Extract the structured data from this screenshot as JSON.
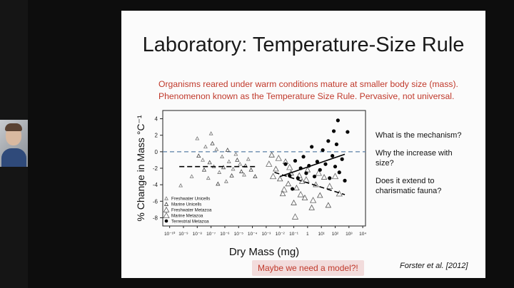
{
  "slide": {
    "title": "Laboratory: Temperature-Size Rule",
    "subtitle_line1": "Organisms reared under warm conditions mature at smaller body size (mass).",
    "subtitle_line2": "Phenomenon known as the Temperature Size Rule.  Pervasive, not universal.",
    "questions": [
      "What is the mechanism?",
      "Why the increase with",
      "size?",
      "Does it extend to",
      "charismatic fauna?"
    ],
    "model_button": "Maybe we need a model?!",
    "citation": "Forster et al. [2012]"
  },
  "chart_data": {
    "type": "scatter",
    "xlabel": "Dry Mass (mg)",
    "ylabel": "% Change in Mass °C⁻¹",
    "x_scale": "log10",
    "x_tick_exponents": [
      -10,
      -9,
      -8,
      -7,
      -6,
      -5,
      -4,
      -3,
      -2,
      -1,
      0,
      1,
      2,
      3,
      4
    ],
    "x_tick_labels": [
      "10⁻¹⁰",
      "10⁻⁹",
      "10⁻⁸",
      "10⁻⁷",
      "10⁻⁶",
      "10⁻⁵",
      "10⁻⁴",
      "10⁻³",
      "10⁻²",
      "10⁻¹",
      "1",
      "10¹",
      "10²",
      "10³",
      "10⁴"
    ],
    "ylim": [
      -9,
      5
    ],
    "y_ticks": [
      -8,
      -6,
      -4,
      -2,
      0,
      2,
      4
    ],
    "zero_line": "dashed",
    "legend": [
      "Freshwater Unicells",
      "Marine Unicells",
      "Freshwater Metazoa",
      "Marine Metazoa",
      "Terrestrial Metazoa"
    ],
    "series": [
      {
        "name": "Freshwater Unicells",
        "marker": "small-triangle-open",
        "points": [
          [
            -9.2,
            -4.1
          ],
          [
            -8.4,
            -3.0
          ],
          [
            -8.0,
            1.6
          ],
          [
            -7.6,
            -1.0
          ],
          [
            -7.4,
            0.6
          ],
          [
            -7.2,
            -3.2
          ],
          [
            -7.0,
            2.2
          ],
          [
            -6.8,
            -1.8
          ],
          [
            -6.6,
            0.3
          ],
          [
            -6.4,
            -2.5
          ],
          [
            -6.2,
            -0.6
          ],
          [
            -5.9,
            -3.6
          ],
          [
            -5.7,
            -1.2
          ],
          [
            -5.4,
            -2.1
          ],
          [
            -5.2,
            -0.3
          ],
          [
            -4.9,
            -1.5
          ],
          [
            -4.6,
            -2.8
          ],
          [
            -4.3,
            -0.9
          ]
        ]
      },
      {
        "name": "Marine Unicells",
        "marker": "small-triangle-open-dark",
        "points": [
          [
            -7.9,
            -0.5
          ],
          [
            -7.5,
            -2.2
          ],
          [
            -7.1,
            -1.3
          ],
          [
            -6.9,
            1.0
          ],
          [
            -6.5,
            -3.9
          ],
          [
            -6.1,
            -1.9
          ],
          [
            -5.8,
            0.2
          ],
          [
            -5.5,
            -2.9
          ],
          [
            -5.1,
            -1.0
          ],
          [
            -4.8,
            -2.4
          ],
          [
            -4.5,
            -1.7
          ],
          [
            -4.1,
            -2.2
          ],
          [
            -3.8,
            -3.0
          ]
        ]
      },
      {
        "name": "Freshwater Metazoa",
        "marker": "triangle-open",
        "points": [
          [
            -2.6,
            -0.4
          ],
          [
            -2.3,
            -2.1
          ],
          [
            -2.0,
            -3.3
          ],
          [
            -1.8,
            -5.1
          ],
          [
            -1.6,
            -1.2
          ],
          [
            -1.4,
            -3.9
          ],
          [
            -1.2,
            -2.6
          ],
          [
            -1.0,
            -6.2
          ],
          [
            -0.8,
            -4.4
          ],
          [
            -0.6,
            -2.9
          ],
          [
            -0.4,
            -3.6
          ],
          [
            -0.2,
            -5.6
          ],
          [
            0.0,
            -2.2
          ],
          [
            0.3,
            -6.8
          ],
          [
            0.6,
            -4.0
          ],
          [
            0.9,
            -5.3
          ],
          [
            1.2,
            -3.1
          ],
          [
            1.5,
            -6.5
          ]
        ]
      },
      {
        "name": "Marine Metazoa",
        "marker": "triangle-open-grey",
        "points": [
          [
            -2.8,
            -1.5
          ],
          [
            -2.5,
            -3.0
          ],
          [
            -2.1,
            -0.8
          ],
          [
            -1.7,
            -4.6
          ],
          [
            -1.3,
            -1.9
          ],
          [
            -0.9,
            -7.9
          ],
          [
            -0.5,
            -5.2
          ],
          [
            -0.1,
            -3.4
          ],
          [
            0.4,
            -5.9
          ],
          [
            0.8,
            -2.6
          ],
          [
            1.6,
            -4.2
          ],
          [
            2.0,
            -3.0
          ],
          [
            2.3,
            -5.1
          ]
        ]
      },
      {
        "name": "Terrestrial Metazoa",
        "marker": "filled-circle",
        "points": [
          [
            -1.6,
            -1.5
          ],
          [
            -1.3,
            -2.9
          ],
          [
            -1.1,
            -4.5
          ],
          [
            -0.9,
            -1.1
          ],
          [
            -0.7,
            -3.2
          ],
          [
            -0.5,
            -2.0
          ],
          [
            -0.3,
            -0.6
          ],
          [
            -0.1,
            -2.6
          ],
          [
            0.1,
            -1.7
          ],
          [
            0.3,
            0.6
          ],
          [
            0.5,
            -3.0
          ],
          [
            0.7,
            -1.2
          ],
          [
            0.9,
            -2.2
          ],
          [
            1.1,
            0.2
          ],
          [
            1.3,
            -1.5
          ],
          [
            1.5,
            1.3
          ],
          [
            1.6,
            -3.2
          ],
          [
            1.8,
            -0.5
          ],
          [
            1.9,
            2.5
          ],
          [
            2.0,
            -1.8
          ],
          [
            2.1,
            0.9
          ],
          [
            2.2,
            3.8
          ],
          [
            2.3,
            -2.5
          ],
          [
            2.5,
            -0.9
          ],
          [
            2.7,
            -3.5
          ],
          [
            2.9,
            2.4
          ]
        ]
      }
    ],
    "trend_lines": [
      {
        "name": "unicell-fit",
        "style": "dashed",
        "points": [
          [
            -9.3,
            -1.8
          ],
          [
            -3.8,
            -1.8
          ]
        ]
      },
      {
        "name": "metazoa-fit-up",
        "style": "solid",
        "points": [
          [
            -2.0,
            -3.0
          ],
          [
            2.7,
            -0.3
          ]
        ]
      },
      {
        "name": "metazoa-fit-down",
        "style": "dashed",
        "points": [
          [
            -2.4,
            -2.5
          ],
          [
            2.7,
            -5.2
          ]
        ]
      }
    ]
  }
}
